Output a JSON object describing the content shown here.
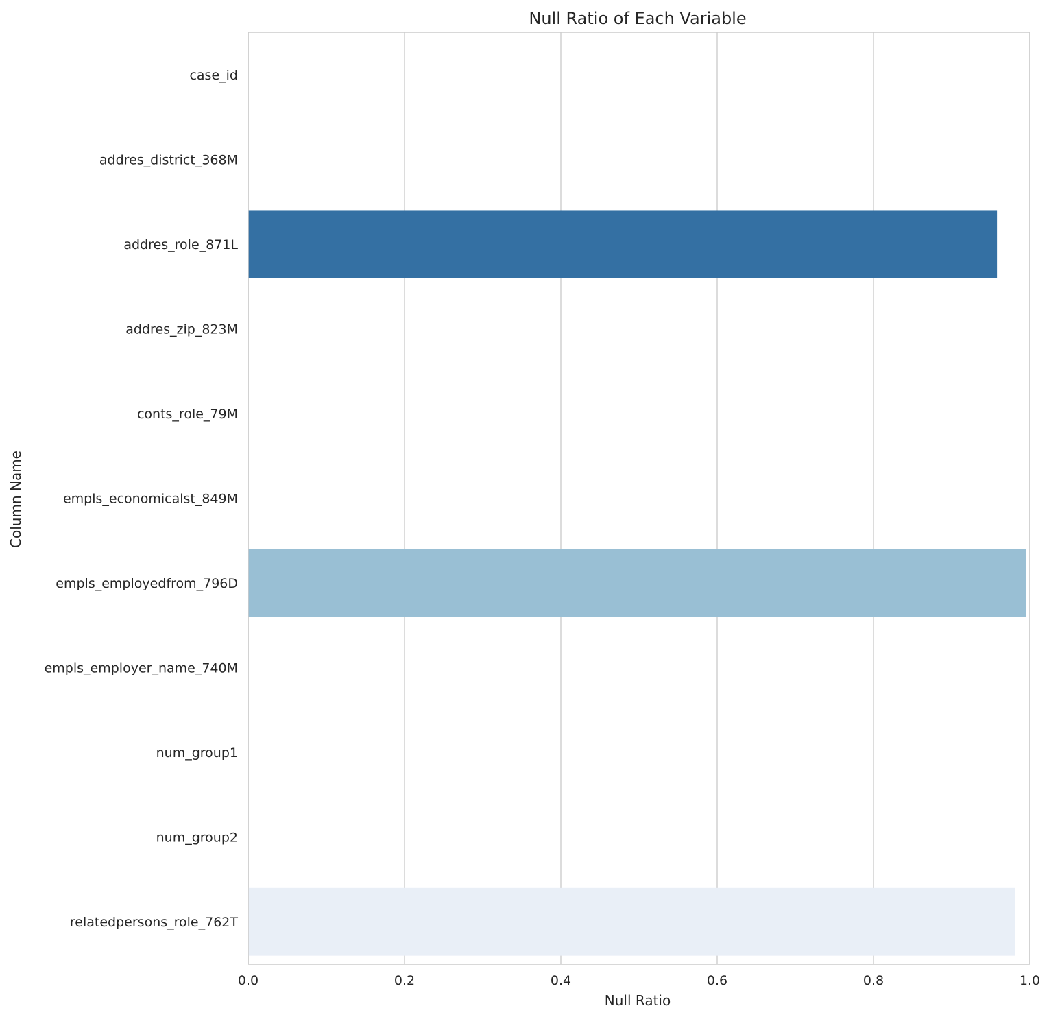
{
  "chart_data": {
    "type": "bar",
    "orientation": "horizontal",
    "title": "Null Ratio of Each Variable",
    "xlabel": "Null Ratio",
    "ylabel": "Column Name",
    "xlim": [
      0.0,
      1.0
    ],
    "xticks": [
      "0.0",
      "0.2",
      "0.4",
      "0.6",
      "0.8",
      "1.0"
    ],
    "grid": "vertical",
    "categories": [
      "case_id",
      "addres_district_368M",
      "addres_role_871L",
      "addres_zip_823M",
      "conts_role_79M",
      "empls_economicalst_849M",
      "empls_employedfrom_796D",
      "empls_employer_name_740M",
      "num_group1",
      "num_group2",
      "relatedpersons_role_762T"
    ],
    "values": [
      0.0,
      0.0,
      0.958,
      0.0,
      0.0,
      0.0,
      0.995,
      0.0,
      0.0,
      0.0,
      0.981
    ],
    "colors": [
      "#08306b",
      "#0b4a8f",
      "#3470a3",
      "#2a7ab9",
      "#4a98c9",
      "#6aaed6",
      "#99bfd4",
      "#b7d4ea",
      "#cfe1f2",
      "#dceaf6",
      "#e9eff7"
    ]
  }
}
